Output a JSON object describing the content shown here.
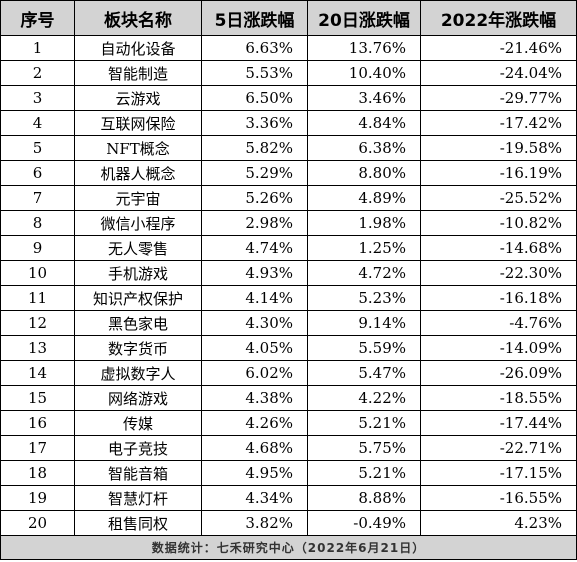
{
  "table": {
    "headers": [
      "序号",
      "板块名称",
      "5日涨跌幅",
      "20日涨跌幅",
      "2022年涨跌幅"
    ],
    "rows": [
      [
        "1",
        "自动化设备",
        "6.63%",
        "13.76%",
        "-21.46%"
      ],
      [
        "2",
        "智能制造",
        "5.53%",
        "10.40%",
        "-24.04%"
      ],
      [
        "3",
        "云游戏",
        "6.50%",
        "3.46%",
        "-29.77%"
      ],
      [
        "4",
        "互联网保险",
        "3.36%",
        "4.84%",
        "-17.42%"
      ],
      [
        "5",
        "NFT概念",
        "5.82%",
        "6.38%",
        "-19.58%"
      ],
      [
        "6",
        "机器人概念",
        "5.29%",
        "8.80%",
        "-16.19%"
      ],
      [
        "7",
        "元宇宙",
        "5.26%",
        "4.89%",
        "-25.52%"
      ],
      [
        "8",
        "微信小程序",
        "2.98%",
        "1.98%",
        "-10.82%"
      ],
      [
        "9",
        "无人零售",
        "4.74%",
        "1.25%",
        "-14.68%"
      ],
      [
        "10",
        "手机游戏",
        "4.93%",
        "4.72%",
        "-22.30%"
      ],
      [
        "11",
        "知识产权保护",
        "4.14%",
        "5.23%",
        "-16.18%"
      ],
      [
        "12",
        "黑色家电",
        "4.30%",
        "9.14%",
        "-4.76%"
      ],
      [
        "13",
        "数字货币",
        "4.05%",
        "5.59%",
        "-14.09%"
      ],
      [
        "14",
        "虚拟数字人",
        "6.02%",
        "5.47%",
        "-26.09%"
      ],
      [
        "15",
        "网络游戏",
        "4.38%",
        "4.22%",
        "-18.55%"
      ],
      [
        "16",
        "传媒",
        "4.26%",
        "5.21%",
        "-17.44%"
      ],
      [
        "17",
        "电子竞技",
        "4.68%",
        "5.75%",
        "-22.71%"
      ],
      [
        "18",
        "智能音箱",
        "4.95%",
        "5.21%",
        "-17.15%"
      ],
      [
        "19",
        "智慧灯杆",
        "4.34%",
        "8.88%",
        "-16.55%"
      ],
      [
        "20",
        "租售同权",
        "3.82%",
        "-0.49%",
        "4.23%"
      ]
    ],
    "footer": "数据统计：七禾研究中心（2022年6月21日）"
  },
  "colors": {
    "header_bg": "#d3d3d3",
    "footer_bg": "#d3d3d3",
    "border": "#000000"
  }
}
